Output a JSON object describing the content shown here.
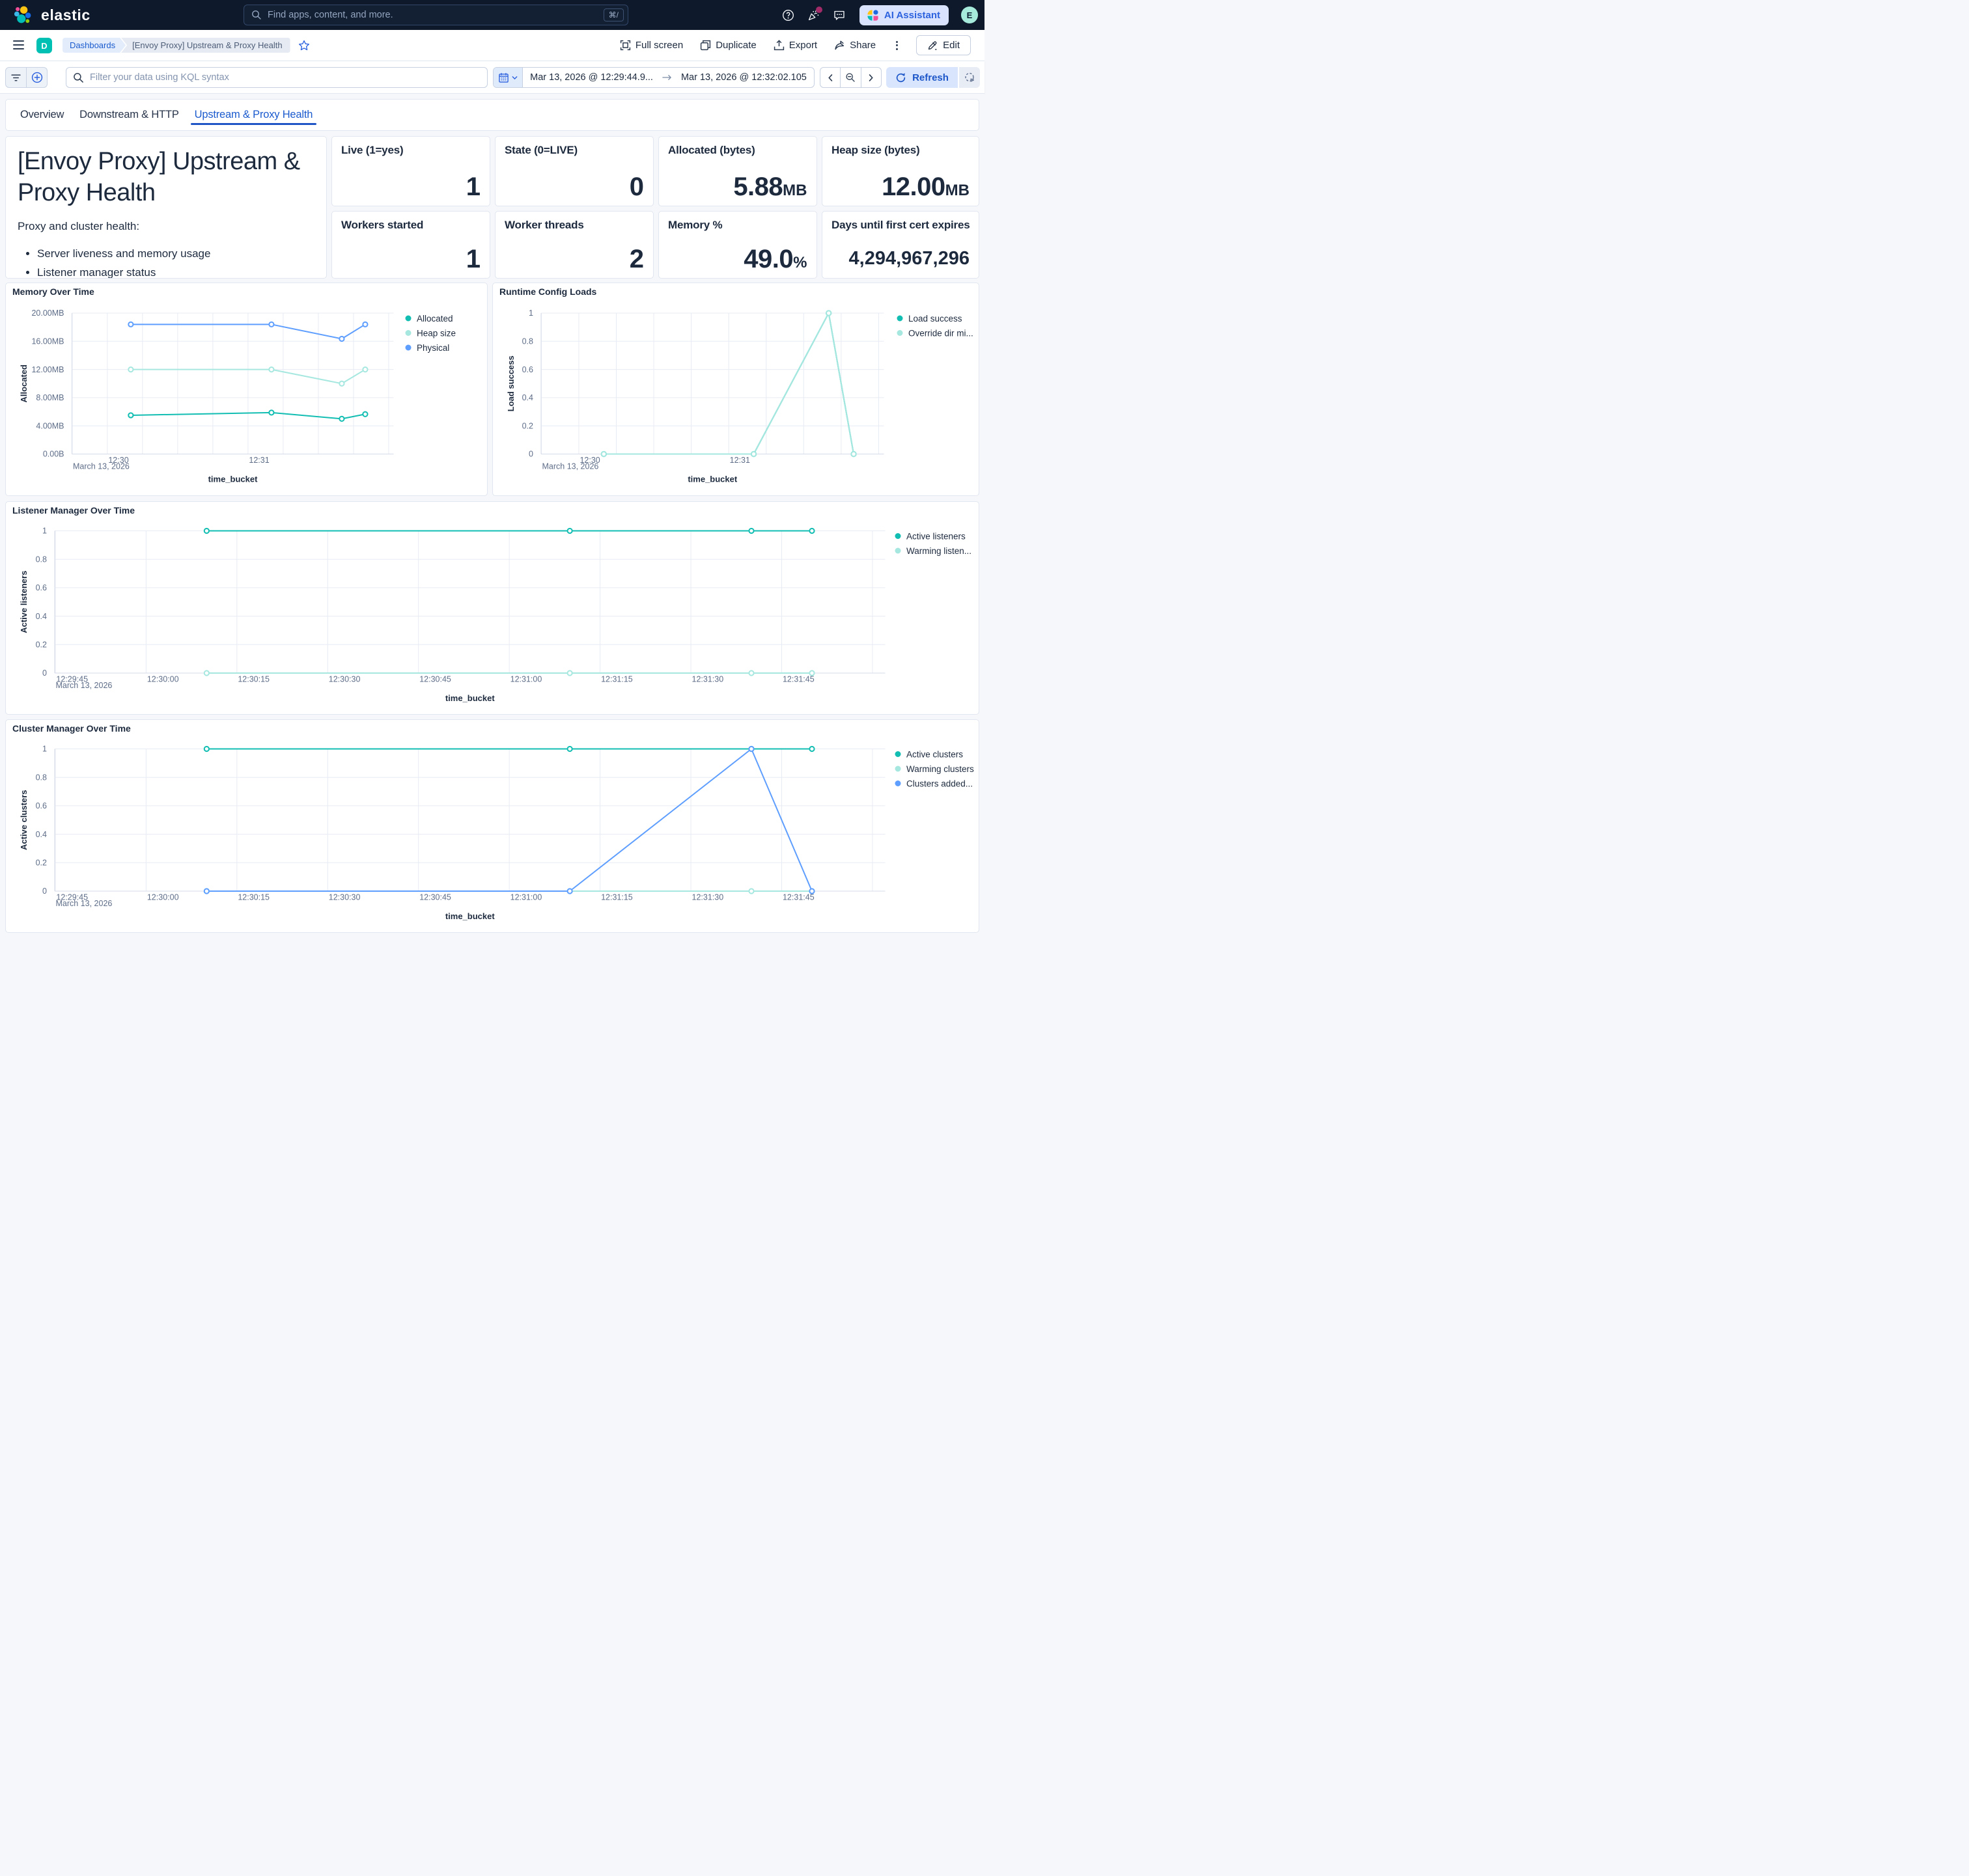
{
  "header": {
    "brand": "elastic",
    "search_placeholder": "Find apps, content, and more.",
    "search_shortcut": "⌘/",
    "ai_assistant_label": "AI Assistant",
    "avatar_initial": "E"
  },
  "nav": {
    "space_initial": "D",
    "breadcrumbs": [
      "Dashboards",
      "[Envoy Proxy] Upstream & Proxy Health"
    ],
    "actions": {
      "full_screen": "Full screen",
      "duplicate": "Duplicate",
      "export": "Export",
      "share": "Share",
      "edit": "Edit"
    }
  },
  "filter_bar": {
    "kql_placeholder": "Filter your data using KQL syntax",
    "date_from": "Mar 13, 2026 @ 12:29:44.9...",
    "date_to": "Mar 13, 2026 @ 12:32:02.105",
    "refresh_label": "Refresh"
  },
  "tabs": [
    {
      "label": "Overview",
      "active": false
    },
    {
      "label": "Downstream & HTTP",
      "active": false
    },
    {
      "label": "Upstream & Proxy Health",
      "active": true
    }
  ],
  "markdown_panel": {
    "title": "[Envoy Proxy] Upstream & Proxy Health",
    "intro": "Proxy and cluster health:",
    "bullets": [
      "Server liveness and memory usage",
      "Listener manager status"
    ]
  },
  "metrics": [
    {
      "label": "Live (1=yes)",
      "value": "1",
      "suffix": ""
    },
    {
      "label": "State (0=LIVE)",
      "value": "0",
      "suffix": ""
    },
    {
      "label": "Allocated (bytes)",
      "value": "5.88",
      "suffix": "MB"
    },
    {
      "label": "Heap size (bytes)",
      "value": "12.00",
      "suffix": "MB"
    },
    {
      "label": "Workers started",
      "value": "1",
      "suffix": ""
    },
    {
      "label": "Worker threads",
      "value": "2",
      "suffix": ""
    },
    {
      "label": "Memory %",
      "value": "49.0",
      "suffix": "%"
    },
    {
      "label": "Days until first cert expires",
      "value": "4,294,967,296",
      "suffix": ""
    }
  ],
  "chart_data": [
    {
      "id": "memory",
      "type": "line",
      "title": "Memory Over Time",
      "xlabel": "time_bucket",
      "ylabel": "Allocated",
      "x_date_label": "March 13, 2026",
      "x_domain": [
        "12:29:44.9",
        "12:32:02.105"
      ],
      "x_grid_start": "12:29:45",
      "x_grid_step_s": 15,
      "x_ticks": [
        {
          "time": "12:30:00",
          "label": "12:30"
        },
        {
          "time": "12:31:00",
          "label": "12:31"
        }
      ],
      "ylim": [
        0,
        20971520
      ],
      "y_ticks": [
        {
          "v": 0,
          "label": "0.00B"
        },
        {
          "v": 4194304,
          "label": "4.00MB"
        },
        {
          "v": 8388608,
          "label": "8.00MB"
        },
        {
          "v": 12582912,
          "label": "12.00MB"
        },
        {
          "v": 16777216,
          "label": "16.00MB"
        },
        {
          "v": 20971520,
          "label": "20.00MB"
        }
      ],
      "x": [
        "12:30:10",
        "12:31:10",
        "12:31:40",
        "12:31:50"
      ],
      "series": [
        {
          "name": "Allocated",
          "color": "#12BDB2",
          "values": [
            5767168,
            6165626,
            5242880,
            5931008
          ]
        },
        {
          "name": "Heap size",
          "color": "#A6E8E0",
          "values": [
            12582912,
            12582912,
            10485760,
            12582912
          ]
        },
        {
          "name": "Physical",
          "color": "#5E9EFF",
          "values": [
            19293798,
            19293798,
            17144218,
            19293798
          ]
        }
      ]
    },
    {
      "id": "runtime",
      "type": "line",
      "title": "Runtime Config Loads",
      "xlabel": "time_bucket",
      "ylabel": "Load success",
      "x_date_label": "March 13, 2026",
      "x_domain": [
        "12:29:44.9",
        "12:32:02.105"
      ],
      "x_grid_start": "12:29:45",
      "x_grid_step_s": 15,
      "x_ticks": [
        {
          "time": "12:30:00",
          "label": "12:30"
        },
        {
          "time": "12:31:00",
          "label": "12:31"
        }
      ],
      "ylim": [
        0,
        1
      ],
      "y_ticks": [
        {
          "v": 0,
          "label": "0"
        },
        {
          "v": 0.2,
          "label": "0.2"
        },
        {
          "v": 0.4,
          "label": "0.4"
        },
        {
          "v": 0.6,
          "label": "0.6"
        },
        {
          "v": 0.8,
          "label": "0.8"
        },
        {
          "v": 1,
          "label": "1"
        }
      ],
      "x": [
        "12:30:10",
        "12:31:10",
        "12:31:40",
        "12:31:50"
      ],
      "series": [
        {
          "name": "Load success",
          "color": "#12BDB2",
          "values": [
            0,
            0,
            1,
            0
          ]
        },
        {
          "name": "Override dir mi...",
          "color": "#A6E8E0",
          "values": [
            0,
            0,
            1,
            0
          ]
        }
      ]
    },
    {
      "id": "listener",
      "type": "line",
      "title": "Listener Manager Over Time",
      "xlabel": "time_bucket",
      "ylabel": "Active listeners",
      "x_date_label": "March 13, 2026",
      "x_domain": [
        "12:29:44.9",
        "12:32:02.105"
      ],
      "x_grid_start": "12:29:45",
      "x_grid_step_s": 15,
      "x_ticks": [
        {
          "time": "12:29:45",
          "label": "12:29:45"
        },
        {
          "time": "12:30:00",
          "label": "12:30:00"
        },
        {
          "time": "12:30:15",
          "label": "12:30:15"
        },
        {
          "time": "12:30:30",
          "label": "12:30:30"
        },
        {
          "time": "12:30:45",
          "label": "12:30:45"
        },
        {
          "time": "12:31:00",
          "label": "12:31:00"
        },
        {
          "time": "12:31:15",
          "label": "12:31:15"
        },
        {
          "time": "12:31:30",
          "label": "12:31:30"
        },
        {
          "time": "12:31:45",
          "label": "12:31:45"
        }
      ],
      "ylim": [
        0,
        1
      ],
      "y_ticks": [
        {
          "v": 0,
          "label": "0"
        },
        {
          "v": 0.2,
          "label": "0.2"
        },
        {
          "v": 0.4,
          "label": "0.4"
        },
        {
          "v": 0.6,
          "label": "0.6"
        },
        {
          "v": 0.8,
          "label": "0.8"
        },
        {
          "v": 1,
          "label": "1"
        }
      ],
      "x": [
        "12:30:10",
        "12:31:10",
        "12:31:40",
        "12:31:50"
      ],
      "series": [
        {
          "name": "Active listeners",
          "color": "#12BDB2",
          "values": [
            1,
            1,
            1,
            1
          ]
        },
        {
          "name": "Warming listen...",
          "color": "#A6E8E0",
          "values": [
            0,
            0,
            0,
            0
          ]
        }
      ]
    },
    {
      "id": "cluster",
      "type": "line",
      "title": "Cluster Manager Over Time",
      "xlabel": "time_bucket",
      "ylabel": "Active clusters",
      "x_date_label": "March 13, 2026",
      "x_domain": [
        "12:29:44.9",
        "12:32:02.105"
      ],
      "x_grid_start": "12:29:45",
      "x_grid_step_s": 15,
      "x_ticks": [
        {
          "time": "12:29:45",
          "label": "12:29:45"
        },
        {
          "time": "12:30:00",
          "label": "12:30:00"
        },
        {
          "time": "12:30:15",
          "label": "12:30:15"
        },
        {
          "time": "12:30:30",
          "label": "12:30:30"
        },
        {
          "time": "12:30:45",
          "label": "12:30:45"
        },
        {
          "time": "12:31:00",
          "label": "12:31:00"
        },
        {
          "time": "12:31:15",
          "label": "12:31:15"
        },
        {
          "time": "12:31:30",
          "label": "12:31:30"
        },
        {
          "time": "12:31:45",
          "label": "12:31:45"
        }
      ],
      "ylim": [
        0,
        1
      ],
      "y_ticks": [
        {
          "v": 0,
          "label": "0"
        },
        {
          "v": 0.2,
          "label": "0.2"
        },
        {
          "v": 0.4,
          "label": "0.4"
        },
        {
          "v": 0.6,
          "label": "0.6"
        },
        {
          "v": 0.8,
          "label": "0.8"
        },
        {
          "v": 1,
          "label": "1"
        }
      ],
      "x": [
        "12:30:10",
        "12:31:10",
        "12:31:40",
        "12:31:50"
      ],
      "series": [
        {
          "name": "Active clusters",
          "color": "#12BDB2",
          "values": [
            1,
            1,
            1,
            1
          ]
        },
        {
          "name": "Warming clusters",
          "color": "#A6E8E0",
          "values": [
            0,
            0,
            0,
            0
          ]
        },
        {
          "name": "Clusters added...",
          "color": "#5E9EFF",
          "values": [
            0,
            0,
            1,
            0
          ]
        }
      ]
    }
  ]
}
